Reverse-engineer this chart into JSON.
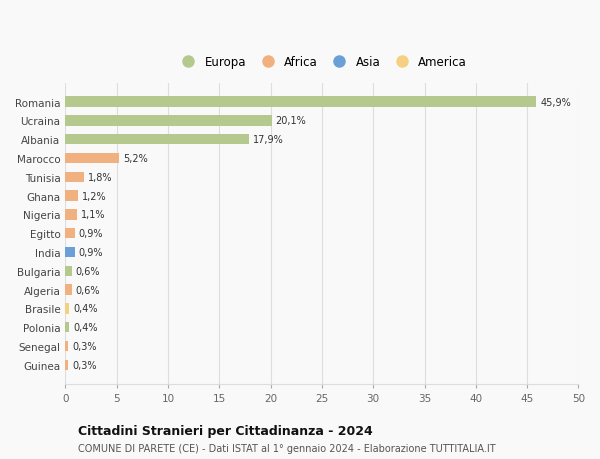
{
  "countries": [
    "Romania",
    "Ucraina",
    "Albania",
    "Marocco",
    "Tunisia",
    "Ghana",
    "Nigeria",
    "Egitto",
    "India",
    "Bulgaria",
    "Algeria",
    "Brasile",
    "Polonia",
    "Senegal",
    "Guinea"
  ],
  "values": [
    45.9,
    20.1,
    17.9,
    5.2,
    1.8,
    1.2,
    1.1,
    0.9,
    0.9,
    0.6,
    0.6,
    0.4,
    0.4,
    0.3,
    0.3
  ],
  "labels": [
    "45,9%",
    "20,1%",
    "17,9%",
    "5,2%",
    "1,8%",
    "1,2%",
    "1,1%",
    "0,9%",
    "0,9%",
    "0,6%",
    "0,6%",
    "0,4%",
    "0,4%",
    "0,3%",
    "0,3%"
  ],
  "continents": [
    "Europa",
    "Europa",
    "Europa",
    "Africa",
    "Africa",
    "Africa",
    "Africa",
    "Africa",
    "Asia",
    "Europa",
    "Africa",
    "America",
    "Europa",
    "Africa",
    "Africa"
  ],
  "colors": {
    "Europa": "#b5c98e",
    "Africa": "#f0b080",
    "Asia": "#6a9fd8",
    "America": "#f5d080"
  },
  "legend_order": [
    "Europa",
    "Africa",
    "Asia",
    "America"
  ],
  "legend_colors": [
    "#b5c98e",
    "#f0b080",
    "#6a9fd8",
    "#f5d080"
  ],
  "xlim": [
    0,
    50
  ],
  "xticks": [
    0,
    5,
    10,
    15,
    20,
    25,
    30,
    35,
    40,
    45,
    50
  ],
  "title": "Cittadini Stranieri per Cittadinanza - 2024",
  "subtitle": "COMUNE DI PARETE (CE) - Dati ISTAT al 1° gennaio 2024 - Elaborazione TUTTITALIA.IT",
  "bg_color": "#f9f9f9",
  "grid_color": "#dddddd"
}
